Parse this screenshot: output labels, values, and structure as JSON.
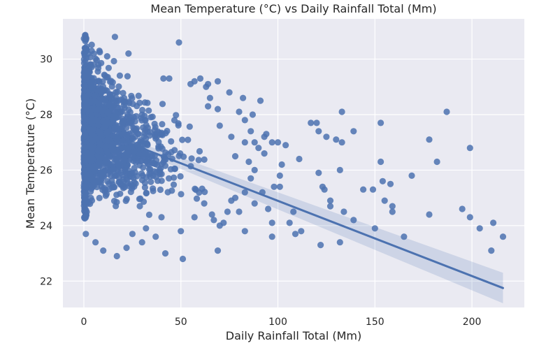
{
  "chart_data": {
    "type": "scatter",
    "title": "Mean Temperature (°C) vs Daily Rainfall Total (Mm)",
    "xlabel": "Daily Rainfall Total (Mm)",
    "ylabel": "Mean Temperature (°C)",
    "xlim": [
      -10.8,
      227
    ],
    "ylim": [
      21.05,
      31.45
    ],
    "x_ticks": [
      0,
      50,
      100,
      150,
      200
    ],
    "y_ticks": [
      22,
      24,
      26,
      28,
      30
    ],
    "grid": true,
    "legend": "none",
    "colors": {
      "background": "#eaeaf2",
      "grid": "#ffffff",
      "points": "#4c72b0",
      "line": "#4c72b0",
      "band": "#4c72b0"
    },
    "regression": {
      "x": [
        0,
        216
      ],
      "y": [
        27.6,
        21.75
      ],
      "ci_lower": [
        27.5,
        21.2
      ],
      "ci_upper": [
        27.7,
        22.3
      ]
    },
    "sparse_points": [
      [
        4,
        30.3
      ],
      [
        8,
        30.3
      ],
      [
        12,
        30.1
      ],
      [
        16,
        30.8
      ],
      [
        23,
        30.2
      ],
      [
        41,
        29.3
      ],
      [
        44,
        29.3
      ],
      [
        49,
        30.6
      ],
      [
        55,
        29.1
      ],
      [
        57,
        29.2
      ],
      [
        60,
        29.3
      ],
      [
        63,
        29.0
      ],
      [
        64,
        29.1
      ],
      [
        65,
        28.6
      ],
      [
        69,
        29.2
      ],
      [
        64,
        28.3
      ],
      [
        69,
        28.2
      ],
      [
        70,
        27.6
      ],
      [
        75,
        28.8
      ],
      [
        80,
        28.1
      ],
      [
        83,
        27.8
      ],
      [
        87,
        28.0
      ],
      [
        82,
        28.6
      ],
      [
        91,
        28.5
      ],
      [
        93,
        27.2
      ],
      [
        94,
        27.3
      ],
      [
        100,
        27.0
      ],
      [
        104,
        26.9
      ],
      [
        111,
        26.4
      ],
      [
        117,
        27.7
      ],
      [
        120,
        27.7
      ],
      [
        121,
        27.4
      ],
      [
        125,
        27.2
      ],
      [
        130,
        27.1
      ],
      [
        133,
        27.0
      ],
      [
        133,
        28.1
      ],
      [
        139,
        27.4
      ],
      [
        153,
        27.7
      ],
      [
        178,
        27.1
      ],
      [
        187,
        28.1
      ],
      [
        199,
        26.8
      ],
      [
        153,
        26.3
      ],
      [
        169,
        25.8
      ],
      [
        182,
        26.3
      ],
      [
        121,
        25.9
      ],
      [
        123,
        25.4
      ],
      [
        124,
        25.3
      ],
      [
        132,
        26.0
      ],
      [
        144,
        25.3
      ],
      [
        149,
        25.3
      ],
      [
        154,
        25.6
      ],
      [
        158,
        25.5
      ],
      [
        155,
        24.9
      ],
      [
        159,
        24.7
      ],
      [
        127,
        24.9
      ],
      [
        127,
        24.7
      ],
      [
        134,
        24.5
      ],
      [
        139,
        24.2
      ],
      [
        159,
        24.5
      ],
      [
        178,
        24.4
      ],
      [
        195,
        24.6
      ],
      [
        199,
        24.3
      ],
      [
        211,
        24.1
      ],
      [
        150,
        23.9
      ],
      [
        165,
        23.6
      ],
      [
        204,
        23.9
      ],
      [
        216,
        23.6
      ],
      [
        210,
        23.1
      ],
      [
        132,
        23.4
      ],
      [
        122,
        23.3
      ],
      [
        112,
        23.8
      ],
      [
        109,
        23.7
      ],
      [
        106,
        24.1
      ],
      [
        108,
        24.5
      ],
      [
        97,
        24.1
      ],
      [
        97,
        23.6
      ],
      [
        95,
        24.6
      ],
      [
        98,
        25.4
      ],
      [
        101,
        25.4
      ],
      [
        101,
        25.8
      ],
      [
        102,
        26.2
      ],
      [
        88,
        24.8
      ],
      [
        92,
        25.2
      ],
      [
        97,
        27.0
      ],
      [
        93,
        26.6
      ],
      [
        90,
        26.8
      ],
      [
        86,
        25.7
      ],
      [
        83,
        25.2
      ],
      [
        78,
        25.0
      ],
      [
        74,
        24.5
      ],
      [
        70,
        24.0
      ],
      [
        67,
        24.2
      ],
      [
        83,
        23.8
      ],
      [
        69,
        23.1
      ],
      [
        51,
        22.8
      ],
      [
        42,
        23.0
      ],
      [
        50,
        23.8
      ],
      [
        40,
        24.3
      ],
      [
        37,
        23.6
      ],
      [
        30,
        23.4
      ],
      [
        22,
        23.2
      ],
      [
        10,
        23.1
      ],
      [
        17,
        22.9
      ],
      [
        25,
        23.7
      ],
      [
        32,
        23.9
      ],
      [
        6,
        23.4
      ],
      [
        1,
        23.7
      ],
      [
        57,
        24.3
      ],
      [
        62,
        24.8
      ],
      [
        66,
        24.4
      ],
      [
        72,
        24.1
      ],
      [
        76,
        24.9
      ],
      [
        80,
        24.5
      ],
      [
        85,
        26.3
      ],
      [
        88,
        26.0
      ],
      [
        78,
        26.5
      ],
      [
        76,
        27.2
      ],
      [
        83,
        27.0
      ],
      [
        86,
        27.4
      ],
      [
        88,
        27.0
      ]
    ]
  }
}
